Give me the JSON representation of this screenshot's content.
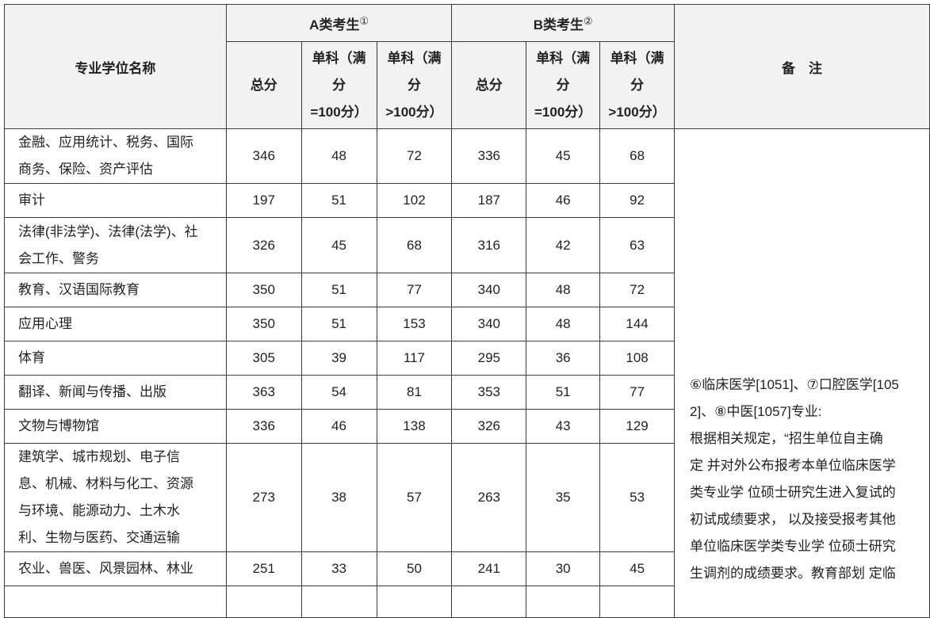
{
  "header": {
    "name_col": "专业学位名称",
    "group_a": "A类考生",
    "group_a_mark": "①",
    "group_b": "B类考生",
    "group_b_mark": "②",
    "total": "总分",
    "single_100_lines": [
      "单科（满",
      "分",
      "=100分）"
    ],
    "single_gt100_lines": [
      "单科（满",
      "分",
      ">100分）"
    ],
    "remark": "备　注"
  },
  "rows": [
    {
      "name": [
        "金融、应用统计、税务、国际",
        "商务、保险、资产评估"
      ],
      "a": [
        "346",
        "48",
        "72"
      ],
      "b": [
        "336",
        "45",
        "68"
      ]
    },
    {
      "name": [
        "审计"
      ],
      "a": [
        "197",
        "51",
        "102"
      ],
      "b": [
        "187",
        "46",
        "92"
      ]
    },
    {
      "name": [
        "法律(非法学)、法律(法学)、社",
        "会工作、警务"
      ],
      "a": [
        "326",
        "45",
        "68"
      ],
      "b": [
        "316",
        "42",
        "63"
      ]
    },
    {
      "name": [
        "教育、汉语国际教育"
      ],
      "a": [
        "350",
        "51",
        "77"
      ],
      "b": [
        "340",
        "48",
        "72"
      ]
    },
    {
      "name": [
        "应用心理"
      ],
      "a": [
        "350",
        "51",
        "153"
      ],
      "b": [
        "340",
        "48",
        "144"
      ]
    },
    {
      "name": [
        "体育"
      ],
      "a": [
        "305",
        "39",
        "117"
      ],
      "b": [
        "295",
        "36",
        "108"
      ]
    },
    {
      "name": [
        "翻译、新闻与传播、出版"
      ],
      "a": [
        "363",
        "54",
        "81"
      ],
      "b": [
        "353",
        "51",
        "77"
      ]
    },
    {
      "name": [
        "文物与博物馆"
      ],
      "a": [
        "336",
        "46",
        "138"
      ],
      "b": [
        "326",
        "43",
        "129"
      ]
    },
    {
      "name": [
        "建筑学、城市规划、电子信",
        "息、机械、材料与化工、资源",
        "与环境、能源动力、土木水",
        "利、生物与医药、交通运输"
      ],
      "a": [
        "273",
        "38",
        "57"
      ],
      "b": [
        "263",
        "35",
        "53"
      ]
    },
    {
      "name": [
        "农业、兽医、风景园林、林业"
      ],
      "a": [
        "251",
        "33",
        "50"
      ],
      "b": [
        "241",
        "30",
        "45"
      ]
    }
  ],
  "remark_lines": [
    "⑥临床医学[1051]、⑦口腔医学[105",
    "2]、⑧中医[1057]专业:",
    "根据相关规定，“招生单位自主确",
    "定 并对外公布报考本单位临床医学",
    "类专业学 位硕士研究生进入复试的",
    "初试成绩要求， 以及接受报考其他",
    "单位临床医学类专业学 位硕士研究",
    "生调剂的成绩要求。教育部划 定临"
  ]
}
